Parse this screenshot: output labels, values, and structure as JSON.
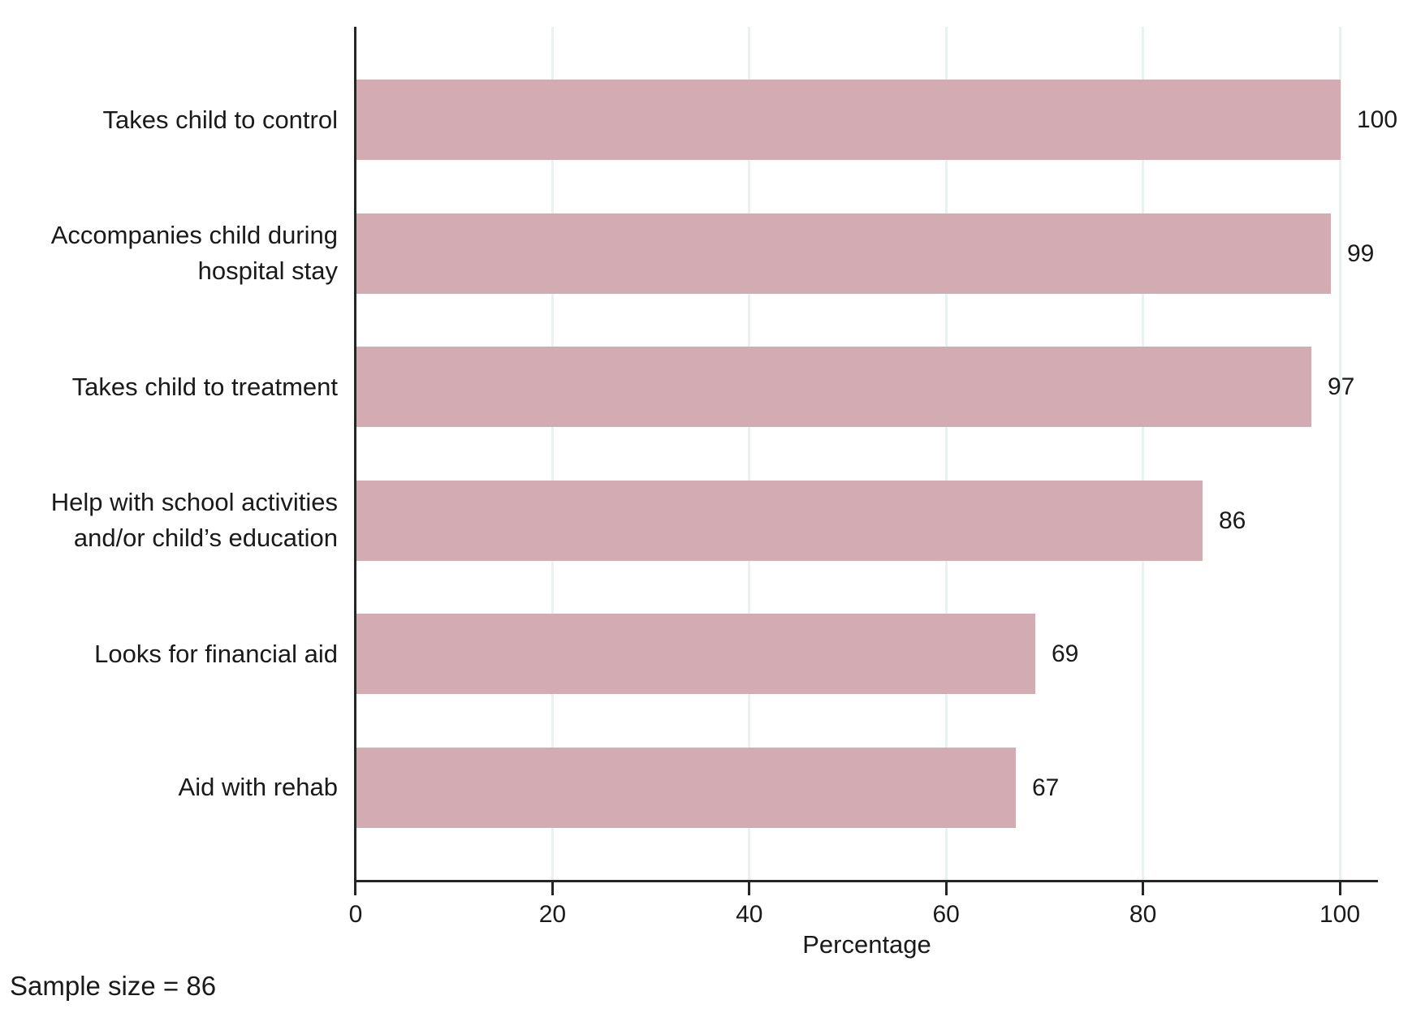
{
  "chart_data": {
    "type": "bar",
    "orientation": "horizontal",
    "categories": [
      "Takes child to control",
      "Accompanies child during\nhospital stay",
      "Takes child to treatment",
      "Help with school activities\nand/or child’s education",
      "Looks for financial aid",
      "Aid with rehab"
    ],
    "values": [
      100,
      99,
      97,
      86,
      69,
      67
    ],
    "xlabel": "Percentage",
    "x_ticks": [
      0,
      20,
      40,
      60,
      80,
      100
    ],
    "xlim": [
      0,
      104
    ],
    "grid": "vertical-gridlines-at-ticks",
    "legend": "none",
    "bar_color": "#d2acb2",
    "gridline_color": "#e9f2f1",
    "axis_color": "#262626",
    "note": "Sample size = 86"
  }
}
